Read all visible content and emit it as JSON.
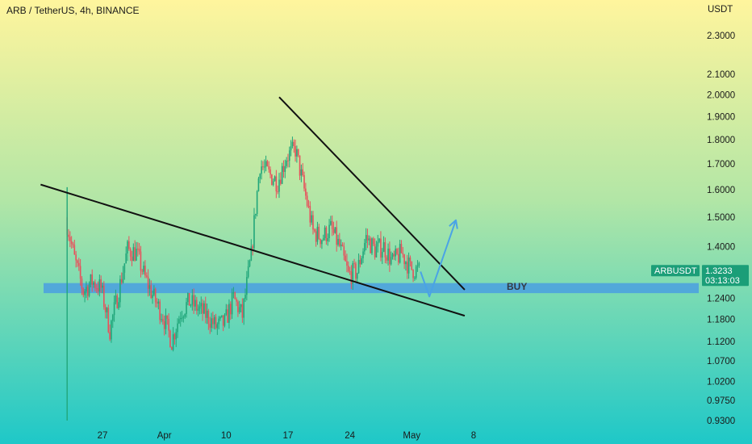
{
  "header": {
    "title": "ARB / TetherUS, 4h, BINANCE"
  },
  "colors": {
    "bg_top": "#fff59d",
    "bg_mid": "#b2e6a6",
    "bg_bottom": "#1ec8c8",
    "up": "#21a67a",
    "down": "#e8505b",
    "trend": "#111111",
    "zone": "#4a9fe0",
    "arrow": "#4aa3e6",
    "tag": "#1b9e78"
  },
  "chart_data": {
    "type": "candlestick",
    "y_unit": "USDT",
    "yscale": "log",
    "ylim": [
      0.91,
      2.4
    ],
    "y_ticks": [
      "2.3000",
      "2.1000",
      "2.0000",
      "1.9000",
      "1.8000",
      "1.7000",
      "1.6000",
      "1.5000",
      "1.4000",
      "1.2400",
      "1.1800",
      "1.1200",
      "1.0700",
      "1.0200",
      "0.9750",
      "0.9300"
    ],
    "x_ticks": [
      "27",
      "Apr",
      "10",
      "17",
      "24",
      "May",
      "8"
    ],
    "x_tick_dates": [
      "Mar 27",
      "Apr 3",
      "Apr 10",
      "Apr 17",
      "Apr 24",
      "May 1",
      "May 8"
    ],
    "anchors": [
      [
        "Mar 23",
        1.5
      ],
      [
        "Mar 24",
        1.36
      ],
      [
        "Mar 25",
        1.26
      ],
      [
        "Mar 26",
        1.29
      ],
      [
        "Mar 27",
        1.27
      ],
      [
        "Mar 28",
        1.15
      ],
      [
        "Mar 29",
        1.26
      ],
      [
        "Mar 30",
        1.39
      ],
      [
        "Mar 31",
        1.38
      ],
      [
        "Apr 1",
        1.3
      ],
      [
        "Apr 2",
        1.24
      ],
      [
        "Apr 3",
        1.19
      ],
      [
        "Apr 4",
        1.12
      ],
      [
        "Apr 5",
        1.2
      ],
      [
        "Apr 6",
        1.23
      ],
      [
        "Apr 7",
        1.21
      ],
      [
        "Apr 8",
        1.19
      ],
      [
        "Apr 9",
        1.16
      ],
      [
        "Apr 10",
        1.17
      ],
      [
        "Apr 11",
        1.24
      ],
      [
        "Apr 12",
        1.19
      ],
      [
        "Apr 13",
        1.37
      ],
      [
        "Apr 14",
        1.7
      ],
      [
        "Apr 15",
        1.66
      ],
      [
        "Apr 16",
        1.63
      ],
      [
        "Apr 17",
        1.73
      ],
      [
        "Apr 18",
        1.76
      ],
      [
        "Apr 19",
        1.6
      ],
      [
        "Apr 20",
        1.45
      ],
      [
        "Apr 21",
        1.43
      ],
      [
        "Apr 22",
        1.46
      ],
      [
        "Apr 23",
        1.4
      ],
      [
        "Apr 24",
        1.31
      ],
      [
        "Apr 25",
        1.32
      ],
      [
        "Apr 26",
        1.43
      ],
      [
        "Apr 27",
        1.39
      ],
      [
        "Apr 28",
        1.4
      ],
      [
        "Apr 29",
        1.35
      ],
      [
        "Apr 30",
        1.38
      ],
      [
        "May 1",
        1.33
      ],
      [
        "May 2",
        1.323
      ]
    ],
    "wick_low": {
      "date": "Mar 23",
      "value": 0.93
    },
    "wick_high": {
      "date": "Mar 23",
      "value": 1.61
    },
    "trendlines": [
      {
        "from": [
          "Mar 20",
          1.62
        ],
        "to": [
          "May 7",
          1.19
        ]
      },
      {
        "from": [
          "Apr 16",
          1.99
        ],
        "to": [
          "May 7",
          1.265
        ]
      }
    ],
    "support_zone": {
      "low": 1.255,
      "high": 1.285,
      "label": "BUY"
    },
    "projection": [
      [
        "May 2",
        1.32
      ],
      [
        "May 3",
        1.245
      ],
      [
        "May 6",
        1.49
      ]
    ],
    "last_price": {
      "symbol": "ARBUSDT",
      "price": "1.3233",
      "countdown": "03:13:03"
    }
  }
}
